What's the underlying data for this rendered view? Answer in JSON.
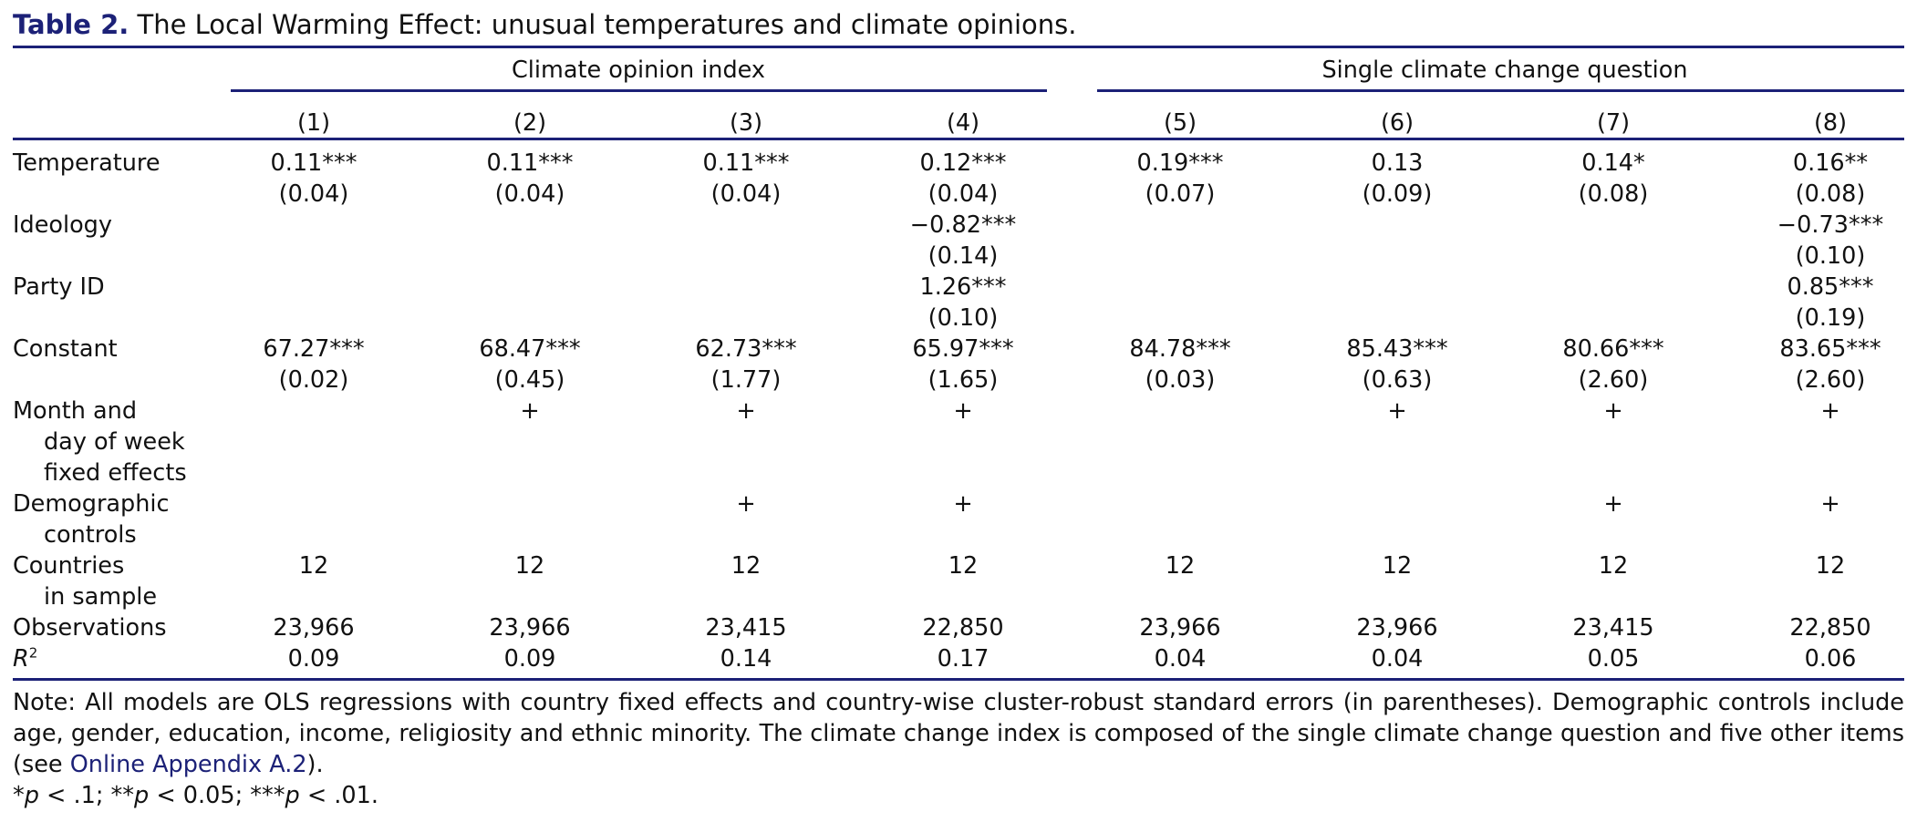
{
  "caption": {
    "label": "Table 2.",
    "title": "The Local Warming Effect: unusual temperatures and climate opinions."
  },
  "groups": [
    {
      "label": "Climate opinion index"
    },
    {
      "label": "Single climate change question"
    }
  ],
  "columns": [
    "(1)",
    "(2)",
    "(3)",
    "(4)",
    "(5)",
    "(6)",
    "(7)",
    "(8)"
  ],
  "rows": [
    {
      "label": [
        "Temperature"
      ],
      "cells": [
        [
          "0.11***",
          "(0.04)"
        ],
        [
          "0.11***",
          "(0.04)"
        ],
        [
          "0.11***",
          "(0.04)"
        ],
        [
          "0.12***",
          "(0.04)"
        ],
        [
          "0.19***",
          "(0.07)"
        ],
        [
          "0.13",
          "(0.09)"
        ],
        [
          "0.14*",
          "(0.08)"
        ],
        [
          "0.16**",
          "(0.08)"
        ]
      ]
    },
    {
      "label": [
        "Ideology"
      ],
      "cells": [
        [],
        [],
        [],
        [
          "−0.82***",
          "(0.14)"
        ],
        [],
        [],
        [],
        [
          "−0.73***",
          "(0.10)"
        ]
      ]
    },
    {
      "label": [
        "Party ID"
      ],
      "cells": [
        [],
        [],
        [],
        [
          "1.26***",
          "(0.10)"
        ],
        [],
        [],
        [],
        [
          "0.85***",
          "(0.19)"
        ]
      ]
    },
    {
      "label": [
        "Constant"
      ],
      "cells": [
        [
          "67.27***",
          "(0.02)"
        ],
        [
          "68.47***",
          "(0.45)"
        ],
        [
          "62.73***",
          "(1.77)"
        ],
        [
          "65.97***",
          "(1.65)"
        ],
        [
          "84.78***",
          "(0.03)"
        ],
        [
          "85.43***",
          "(0.63)"
        ],
        [
          "80.66***",
          "(2.60)"
        ],
        [
          "83.65***",
          "(2.60)"
        ]
      ]
    },
    {
      "label": [
        "Month and",
        "day of week",
        "fixed effects"
      ],
      "cells": [
        [],
        [
          "+"
        ],
        [
          "+"
        ],
        [
          "+"
        ],
        [],
        [
          "+"
        ],
        [
          "+"
        ],
        [
          "+"
        ]
      ]
    },
    {
      "label": [
        "Demographic",
        "controls"
      ],
      "cells": [
        [],
        [],
        [
          "+"
        ],
        [
          "+"
        ],
        [],
        [],
        [
          "+"
        ],
        [
          "+"
        ]
      ]
    },
    {
      "label": [
        "Countries",
        "in sample"
      ],
      "cells": [
        [
          "12"
        ],
        [
          "12"
        ],
        [
          "12"
        ],
        [
          "12"
        ],
        [
          "12"
        ],
        [
          "12"
        ],
        [
          "12"
        ],
        [
          "12"
        ]
      ]
    },
    {
      "label": [
        "Observations"
      ],
      "cells": [
        [
          "23,966"
        ],
        [
          "23,966"
        ],
        [
          "23,415"
        ],
        [
          "22,850"
        ],
        [
          "23,966"
        ],
        [
          "23,966"
        ],
        [
          "23,415"
        ],
        [
          "22,850"
        ]
      ]
    },
    {
      "label": [
        "R",
        "2"
      ],
      "label_style": "r-squared",
      "cells": [
        [
          "0.09"
        ],
        [
          "0.09"
        ],
        [
          "0.14"
        ],
        [
          "0.17"
        ],
        [
          "0.04"
        ],
        [
          "0.04"
        ],
        [
          "0.05"
        ],
        [
          "0.06"
        ]
      ]
    }
  ],
  "note": {
    "text": "Note: All models are OLS regressions with country fixed effects and country-wise cluster-robust standard errors (in parentheses). Demographic controls include age, gender, education, income, religiosity and ethnic minority. The climate change index is composed of the single climate change question and five other items (see ",
    "link": "Online Appendix A.2",
    "after_link": ").",
    "significance": [
      {
        "stars": "*",
        "p": "p",
        "rel": " < .1;"
      },
      {
        "stars": " **",
        "p": "p",
        "rel": " < 0.05;"
      },
      {
        "stars": " ***",
        "p": "p",
        "rel": " < .01."
      }
    ]
  }
}
